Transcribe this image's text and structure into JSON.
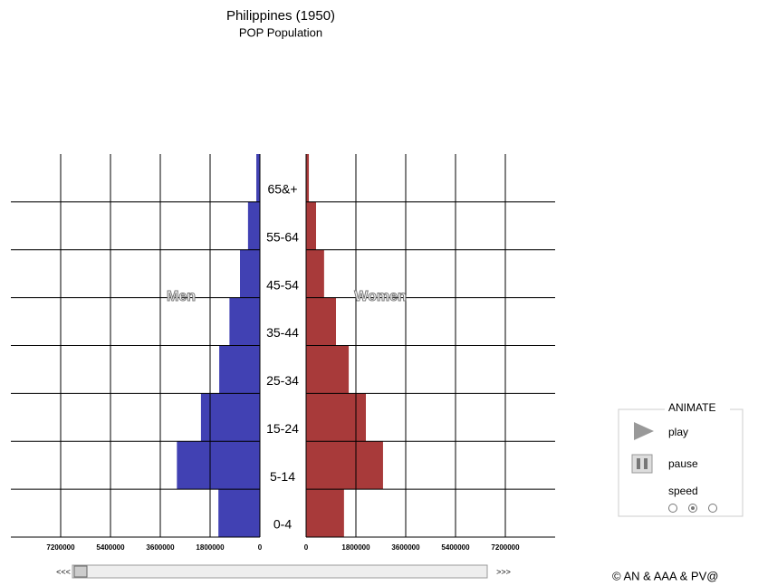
{
  "chart_data": {
    "type": "pyramid",
    "title": "Philippines (1950)",
    "subtitle": "POP Population",
    "categories": [
      "0-4",
      "5-14",
      "15-24",
      "25-34",
      "35-44",
      "45-54",
      "55-64",
      "65&+"
    ],
    "series": [
      {
        "name": "Men",
        "color": "#4141b3",
        "values": [
          1500000,
          3000000,
          2130000,
          1470000,
          1100000,
          720000,
          430000,
          130000
        ]
      },
      {
        "name": "Women",
        "color": "#a83a3a",
        "values": [
          1370000,
          2780000,
          2160000,
          1540000,
          1080000,
          650000,
          360000,
          100000
        ]
      }
    ],
    "xlim": [
      0,
      9000000
    ],
    "xticks": [
      0,
      1800000,
      3600000,
      5400000,
      7200000
    ],
    "grid": true
  },
  "controls": {
    "back": "<<<",
    "forward": ">>>",
    "animate": "ANIMATE",
    "play": "play",
    "pause": "pause",
    "speed": "speed",
    "copyright": "© AN & AAA & PV@"
  }
}
